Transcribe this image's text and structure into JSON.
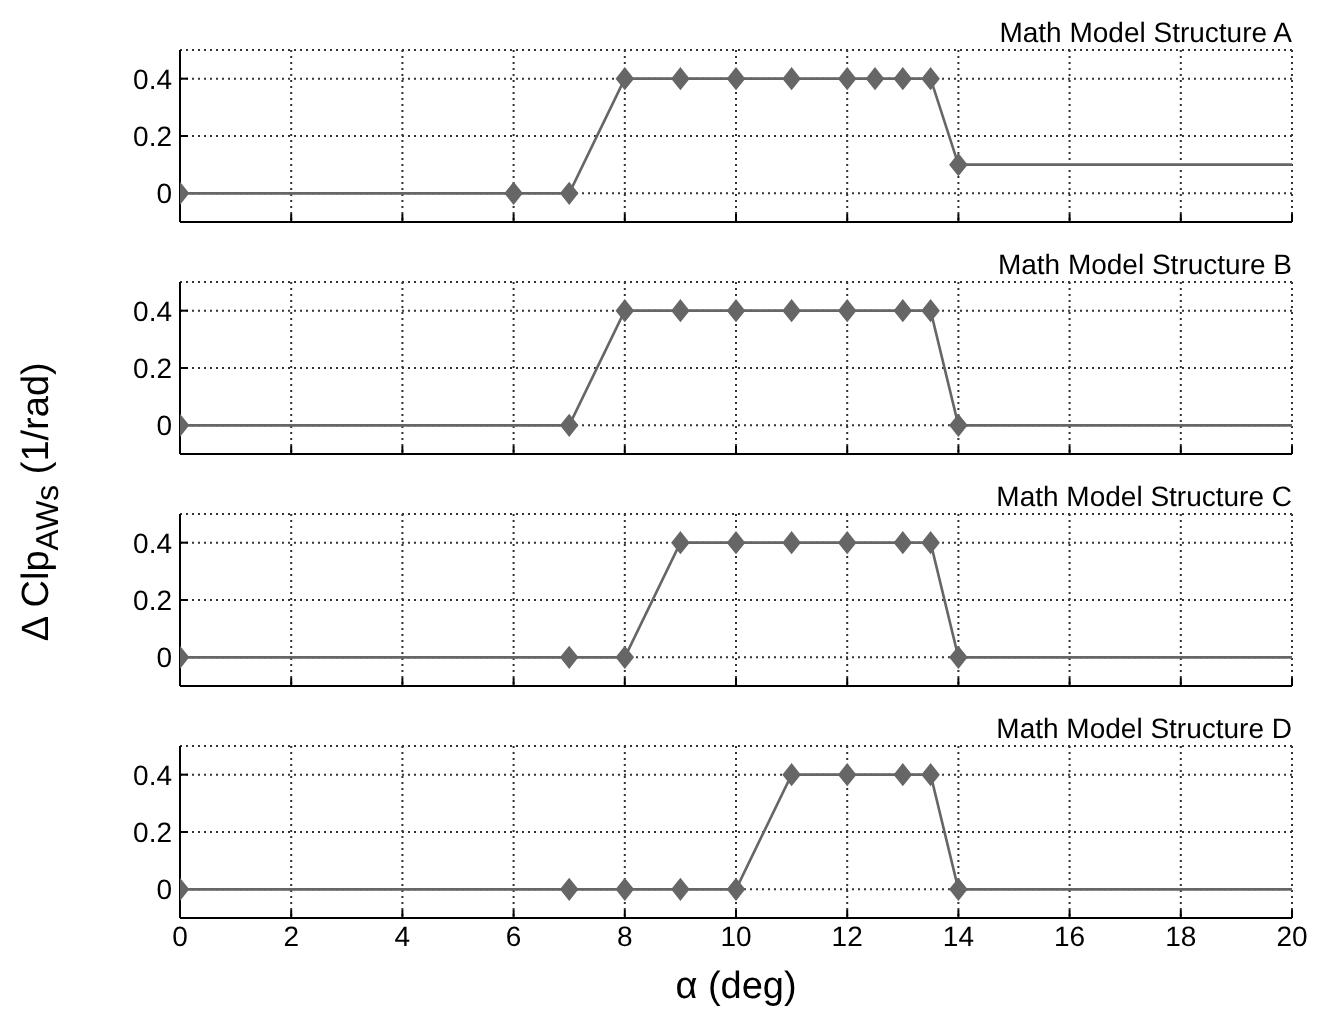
{
  "chart_data": [
    {
      "type": "line",
      "title": "Math Model Structure A",
      "ylabel": "Δ Clp$_{AWs}$ (1/rad)",
      "xlim": [
        0,
        20
      ],
      "xticks": [
        0,
        2,
        4,
        6,
        8,
        10,
        12,
        14,
        16,
        18,
        20
      ],
      "ylim": [
        -0.1,
        0.5
      ],
      "yticks": [
        0,
        0.2,
        0.4
      ],
      "grid": true,
      "marker": "diamond",
      "tick_labels": "y",
      "series": [
        {
          "color": "#666666",
          "x": [
            0,
            6,
            7,
            8,
            9,
            10,
            11,
            12,
            12.5,
            13,
            13.5,
            14
          ],
          "values": [
            0,
            0,
            0,
            0.4,
            0.4,
            0.4,
            0.4,
            0.4,
            0.4,
            0.4,
            0.4,
            0.1
          ]
        },
        {
          "color": "#666666",
          "marker": "none",
          "x": [
            14,
            20
          ],
          "values": [
            0.1,
            0.1
          ]
        }
      ]
    },
    {
      "type": "line",
      "title": "Math Model Structure B",
      "xlim": [
        0,
        20
      ],
      "xticks": [
        0,
        2,
        4,
        6,
        8,
        10,
        12,
        14,
        16,
        18,
        20
      ],
      "ylim": [
        -0.1,
        0.5
      ],
      "yticks": [
        0,
        0.2,
        0.4
      ],
      "grid": true,
      "marker": "diamond",
      "tick_labels": "y",
      "series": [
        {
          "color": "#666666",
          "x": [
            0,
            7,
            8,
            9,
            10,
            11,
            12,
            13,
            13.5,
            14
          ],
          "values": [
            0,
            0,
            0.4,
            0.4,
            0.4,
            0.4,
            0.4,
            0.4,
            0.4,
            0
          ]
        },
        {
          "color": "#666666",
          "marker": "none",
          "x": [
            14,
            20
          ],
          "values": [
            0,
            0
          ]
        }
      ]
    },
    {
      "type": "line",
      "title": "Math Model Structure C",
      "xlim": [
        0,
        20
      ],
      "xticks": [
        0,
        2,
        4,
        6,
        8,
        10,
        12,
        14,
        16,
        18,
        20
      ],
      "ylim": [
        -0.1,
        0.5
      ],
      "yticks": [
        0,
        0.2,
        0.4
      ],
      "grid": true,
      "marker": "diamond",
      "tick_labels": "y",
      "series": [
        {
          "color": "#666666",
          "x": [
            0,
            7,
            8,
            9,
            10,
            11,
            12,
            13,
            13.5,
            14
          ],
          "values": [
            0,
            0,
            0,
            0.4,
            0.4,
            0.4,
            0.4,
            0.4,
            0.4,
            0
          ]
        },
        {
          "color": "#666666",
          "marker": "none",
          "x": [
            14,
            20
          ],
          "values": [
            0,
            0
          ]
        }
      ]
    },
    {
      "type": "line",
      "title": "Math Model Structure D",
      "xlabel": "α (deg)",
      "xlim": [
        0,
        20
      ],
      "xticks": [
        0,
        2,
        4,
        6,
        8,
        10,
        12,
        14,
        16,
        18,
        20
      ],
      "ylim": [
        -0.1,
        0.5
      ],
      "yticks": [
        0,
        0.2,
        0.4
      ],
      "grid": true,
      "marker": "diamond",
      "series": [
        {
          "color": "#666666",
          "x": [
            0,
            7,
            8,
            9,
            10,
            11,
            12,
            13,
            13.5,
            14
          ],
          "values": [
            0,
            0,
            0,
            0,
            0,
            0.4,
            0.4,
            0.4,
            0.4,
            0
          ]
        },
        {
          "color": "#666666",
          "marker": "none",
          "x": [
            14,
            20
          ],
          "values": [
            0,
            0
          ]
        }
      ]
    }
  ]
}
